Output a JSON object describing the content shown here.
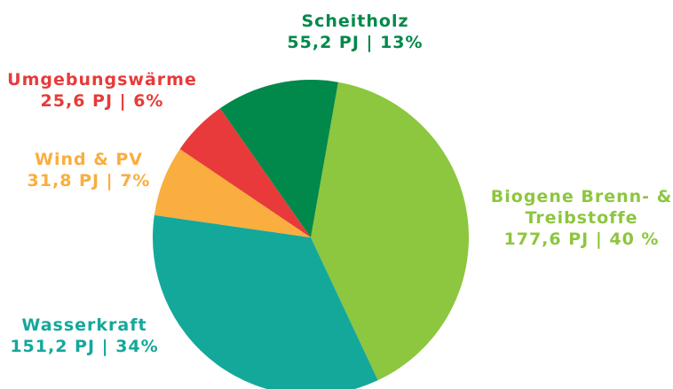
{
  "chart_data": {
    "type": "pie",
    "categories": [
      "Biogene Brenn- & Treibstoffe",
      "Wasserkraft",
      "Wind & PV",
      "Umgebungswärme",
      "Scheitholz"
    ],
    "values": [
      177.6,
      151.2,
      31.8,
      25.6,
      55.2
    ],
    "value_labels": [
      "177,6 PJ | 40 %",
      "151,2 PJ | 34%",
      "31,8 PJ | 7%",
      "25,6 PJ | 6%",
      "55,2 PJ | 13%"
    ],
    "colors": [
      "#8dc63f",
      "#14a89b",
      "#f9ae3f",
      "#e83a3a",
      "#00894a"
    ]
  }
}
